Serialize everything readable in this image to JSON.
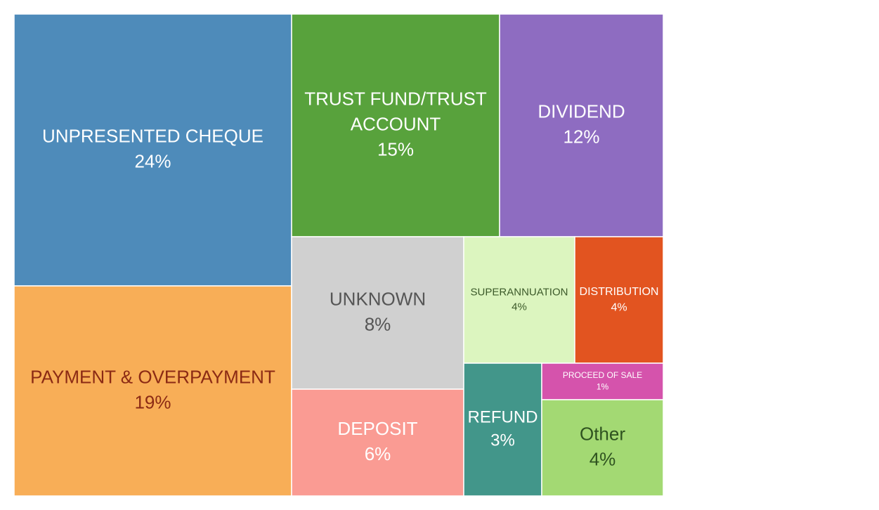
{
  "chart_data": {
    "type": "treemap",
    "title": "",
    "items": [
      {
        "label": "UNPRESENTED CHEQUE",
        "value": 24,
        "value_label": "24%",
        "color": "#4E8BBA",
        "text_color": "#FFFFFF"
      },
      {
        "label": "PAYMENT & OVERPAYMENT",
        "value": 19,
        "value_label": "19%",
        "color": "#F8AE57",
        "text_color": "#8B2A14"
      },
      {
        "label": "TRUST FUND/TRUST ACCOUNT",
        "value": 15,
        "value_label": "15%",
        "color": "#58A23C",
        "text_color": "#FFFFFF"
      },
      {
        "label": "DIVIDEND",
        "value": 12,
        "value_label": "12%",
        "color": "#8E6CC1",
        "text_color": "#FFFFFF"
      },
      {
        "label": "UNKNOWN",
        "value": 8,
        "value_label": "8%",
        "color": "#D0D0D0",
        "text_color": "#555555"
      },
      {
        "label": "DEPOSIT",
        "value": 6,
        "value_label": "6%",
        "color": "#FA9B93",
        "text_color": "#FFFFFF"
      },
      {
        "label": "SUPERANNUATION",
        "value": 4,
        "value_label": "4%",
        "color": "#DCF5BF",
        "text_color": "#3C5A2A"
      },
      {
        "label": "DISTRIBUTION",
        "value": 4,
        "value_label": "4%",
        "color": "#E25420",
        "text_color": "#FFFFFF"
      },
      {
        "label": "REFUND",
        "value": 3,
        "value_label": "3%",
        "color": "#42968A",
        "text_color": "#FFFFFF"
      },
      {
        "label": "PROCEED OF SALE",
        "value": 1,
        "value_label": "1%",
        "color": "#D553AC",
        "text_color": "#FFFFFF"
      },
      {
        "label": "Other",
        "value": 4,
        "value_label": "4%",
        "color": "#A3D973",
        "text_color": "#2F5320"
      }
    ]
  }
}
